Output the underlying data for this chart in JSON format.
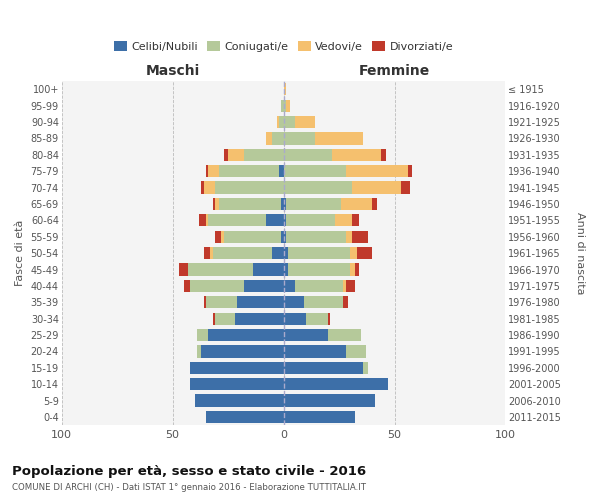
{
  "age_groups": [
    "0-4",
    "5-9",
    "10-14",
    "15-19",
    "20-24",
    "25-29",
    "30-34",
    "35-39",
    "40-44",
    "45-49",
    "50-54",
    "55-59",
    "60-64",
    "65-69",
    "70-74",
    "75-79",
    "80-84",
    "85-89",
    "90-94",
    "95-99",
    "100+"
  ],
  "birth_years": [
    "2011-2015",
    "2006-2010",
    "2001-2005",
    "1996-2000",
    "1991-1995",
    "1986-1990",
    "1981-1985",
    "1976-1980",
    "1971-1975",
    "1966-1970",
    "1961-1965",
    "1956-1960",
    "1951-1955",
    "1946-1950",
    "1941-1945",
    "1936-1940",
    "1931-1935",
    "1926-1930",
    "1921-1925",
    "1916-1920",
    "≤ 1915"
  ],
  "male": {
    "celibe": [
      35,
      40,
      42,
      42,
      37,
      34,
      22,
      21,
      18,
      14,
      5,
      1,
      8,
      1,
      0,
      2,
      0,
      0,
      0,
      0,
      0
    ],
    "coniugato": [
      0,
      0,
      0,
      0,
      2,
      5,
      9,
      14,
      24,
      29,
      27,
      26,
      26,
      28,
      31,
      27,
      18,
      5,
      2,
      1,
      0
    ],
    "vedovo": [
      0,
      0,
      0,
      0,
      0,
      0,
      0,
      0,
      0,
      0,
      1,
      1,
      1,
      2,
      5,
      5,
      7,
      3,
      1,
      0,
      0
    ],
    "divorziato": [
      0,
      0,
      0,
      0,
      0,
      0,
      1,
      1,
      3,
      4,
      3,
      3,
      3,
      1,
      1,
      1,
      2,
      0,
      0,
      0,
      0
    ]
  },
  "female": {
    "nubile": [
      32,
      41,
      47,
      36,
      28,
      20,
      10,
      9,
      5,
      2,
      2,
      1,
      1,
      1,
      0,
      0,
      0,
      0,
      0,
      0,
      0
    ],
    "coniugata": [
      0,
      0,
      0,
      2,
      9,
      15,
      10,
      18,
      22,
      28,
      28,
      27,
      22,
      25,
      31,
      28,
      22,
      14,
      5,
      1,
      0
    ],
    "vedova": [
      0,
      0,
      0,
      0,
      0,
      0,
      0,
      0,
      1,
      2,
      3,
      3,
      8,
      14,
      22,
      28,
      22,
      22,
      9,
      2,
      1
    ],
    "divorziata": [
      0,
      0,
      0,
      0,
      0,
      0,
      1,
      2,
      4,
      2,
      7,
      7,
      3,
      2,
      4,
      2,
      2,
      0,
      0,
      0,
      0
    ]
  },
  "colors": {
    "celibe": "#3d6fa8",
    "coniugato": "#b5c99a",
    "vedovo": "#f5c06e",
    "divorziato": "#c0392b"
  },
  "xlim": 100,
  "title": "Popolazione per età, sesso e stato civile - 2016",
  "subtitle": "COMUNE DI ARCHI (CH) - Dati ISTAT 1° gennaio 2016 - Elaborazione TUTTITALIA.IT",
  "xlabel_maschi": "Maschi",
  "xlabel_femmine": "Femmine",
  "ylabel": "Fasce di età",
  "ylabel_right": "Anni di nascita",
  "legend_labels": [
    "Celibi/Nubili",
    "Coniugati/e",
    "Vedovi/e",
    "Divorziati/e"
  ],
  "bg_color": "#f4f4f4",
  "bar_height": 0.75
}
